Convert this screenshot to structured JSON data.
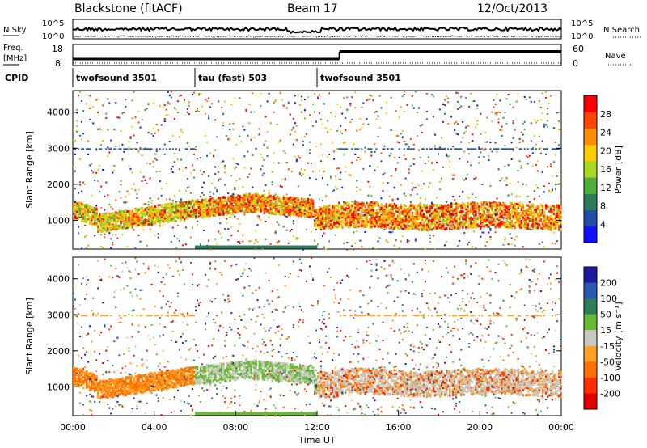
{
  "header": {
    "title_left": "Blackstone (fitACF)",
    "title_center": "Beam 17",
    "title_right": "12/Oct/2013"
  },
  "noise_panel": {
    "left_label": "N.Sky",
    "right_label": "N.Search",
    "left_ticks": [
      "10^5",
      "10^0"
    ],
    "right_ticks": [
      "10^5",
      "10^0"
    ]
  },
  "freq_panel": {
    "left_label_1": "Freq.",
    "left_label_2": "[MHz]",
    "right_label": "Nave",
    "left_ticks": [
      "18",
      "8"
    ],
    "right_ticks": [
      "60",
      "0"
    ]
  },
  "cpid": {
    "label": "CPID",
    "segments": [
      {
        "name": "twofsound 3501",
        "start_hour": 0,
        "end_hour": 6
      },
      {
        "name": "tau (fast) 503",
        "start_hour": 6,
        "end_hour": 12
      },
      {
        "name": "twofsound 3501",
        "start_hour": 12,
        "end_hour": 24
      }
    ]
  },
  "chart_data": [
    {
      "type": "heatmap",
      "name": "power",
      "ylabel": "Slant Range [km]",
      "yticks": [
        1000,
        2000,
        3000,
        4000
      ],
      "ylim": [
        200,
        4600
      ],
      "xlim": [
        0,
        24
      ],
      "colorbar": {
        "label": "Power [dB]",
        "ticks": [
          "4",
          "8",
          "12",
          "16",
          "20",
          "24",
          "28"
        ],
        "colors": [
          "#1010ff",
          "#1f4fa8",
          "#2e7d5a",
          "#4fae3a",
          "#a8d820",
          "#ffcc00",
          "#ff8c00",
          "#ff4500",
          "#ff0000"
        ]
      }
    },
    {
      "type": "heatmap",
      "name": "velocity",
      "ylabel": "Slant Range [km]",
      "yticks": [
        1000,
        2000,
        3000,
        4000
      ],
      "ylim": [
        200,
        4600
      ],
      "xlim": [
        0,
        24
      ],
      "xlabel": "Time UT",
      "xticks": [
        "00:00",
        "04:00",
        "08:00",
        "12:00",
        "16:00",
        "20:00",
        "00:00"
      ],
      "colorbar": {
        "label": "Velocity [m s⁻¹]",
        "ticks": [
          "200",
          "100",
          "50",
          "15",
          "-15",
          "-50",
          "-100",
          "-200"
        ],
        "colors": [
          "#1a1aa0",
          "#2a5ab0",
          "#2e7d5a",
          "#66bb33",
          "#c8c8c0",
          "#ffa020",
          "#ff7000",
          "#ff3000",
          "#e00000"
        ]
      }
    }
  ]
}
